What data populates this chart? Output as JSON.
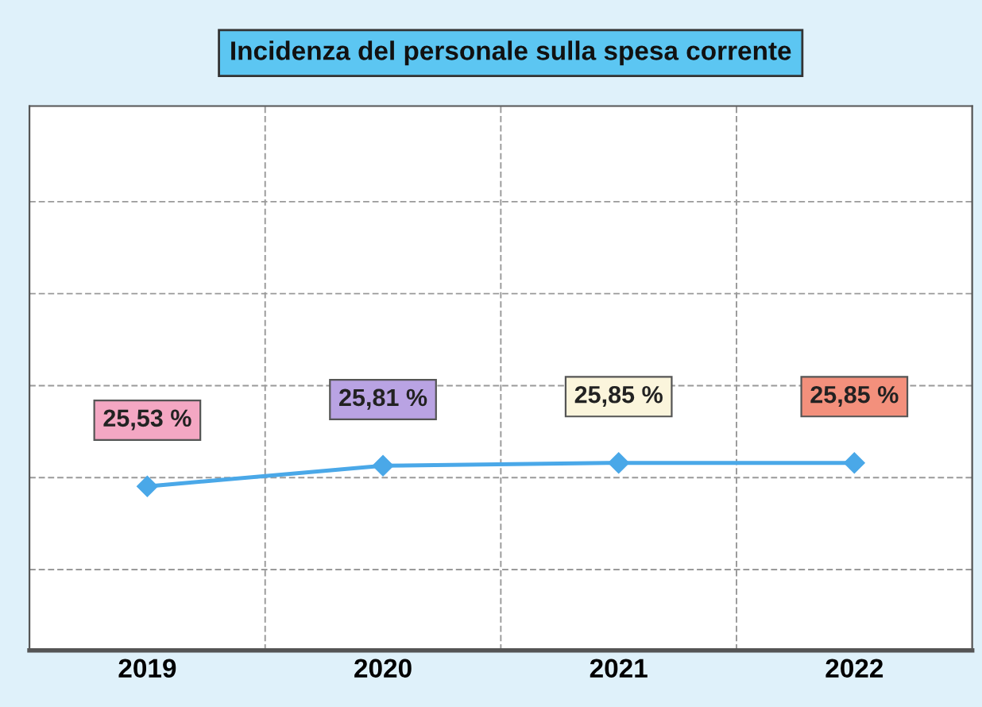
{
  "chart_data": {
    "type": "line",
    "title": "Incidenza del personale sulla spesa corrente",
    "categories": [
      "2019",
      "2020",
      "2021",
      "2022"
    ],
    "series": [
      {
        "color": "#4aa8e8",
        "values": [
          25.53,
          25.81,
          25.85,
          25.85
        ],
        "value_labels": [
          "25,53 %",
          "25,81 %",
          "25,85 %",
          "25,85 %"
        ]
      }
    ],
    "ylim": [
      23.3,
      30.7
    ],
    "yticks": [
      {
        "value": 24.4,
        "label": null
      },
      {
        "value": 25.65,
        "label": null
      },
      {
        "value": 26.9,
        "label": null
      },
      {
        "value": 28.15,
        "label": null
      },
      {
        "value": 29.4,
        "label": null
      }
    ],
    "tick_labels": "x",
    "grid": true,
    "marker": "diamond",
    "line_style": "solid"
  }
}
